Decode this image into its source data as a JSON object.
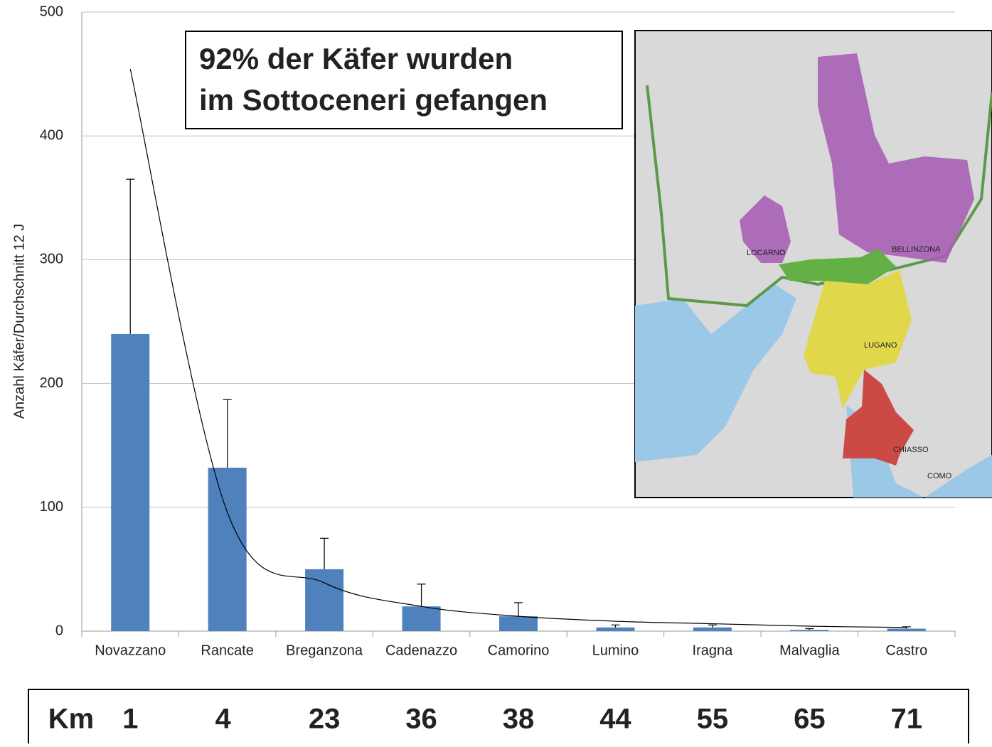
{
  "chart_data": {
    "type": "bar",
    "y_axis_label": "Anzahl Käfer/Durchschnitt  12 J",
    "annotation": [
      "92% der Käfer wurden",
      "im Sottoceneri gefangen"
    ],
    "categories": [
      "Novazzano",
      "Rancate",
      "Breganzona",
      "Cadenazzo",
      "Camorino",
      "Lumino",
      "Iragna",
      "Malvaglia",
      "Castro"
    ],
    "values": [
      240,
      132,
      50,
      20,
      12,
      3,
      3,
      1,
      2
    ],
    "errors": [
      125,
      55,
      25,
      18,
      11,
      2,
      2,
      1,
      1.5
    ],
    "trend": [
      454,
      96,
      39,
      20,
      12,
      8,
      6,
      4,
      3
    ],
    "color": "#4f81bd",
    "ylim": [
      0,
      500
    ],
    "yticks": [
      0,
      100,
      200,
      300,
      400,
      500
    ],
    "grid": true,
    "distance_label": "Km",
    "distances": [
      1,
      4,
      23,
      36,
      38,
      44,
      55,
      65,
      71
    ],
    "map_labels": [
      "LOCARNO",
      "BELLINZONA",
      "LUGANO",
      "CHIASSO",
      "COMO"
    ]
  }
}
